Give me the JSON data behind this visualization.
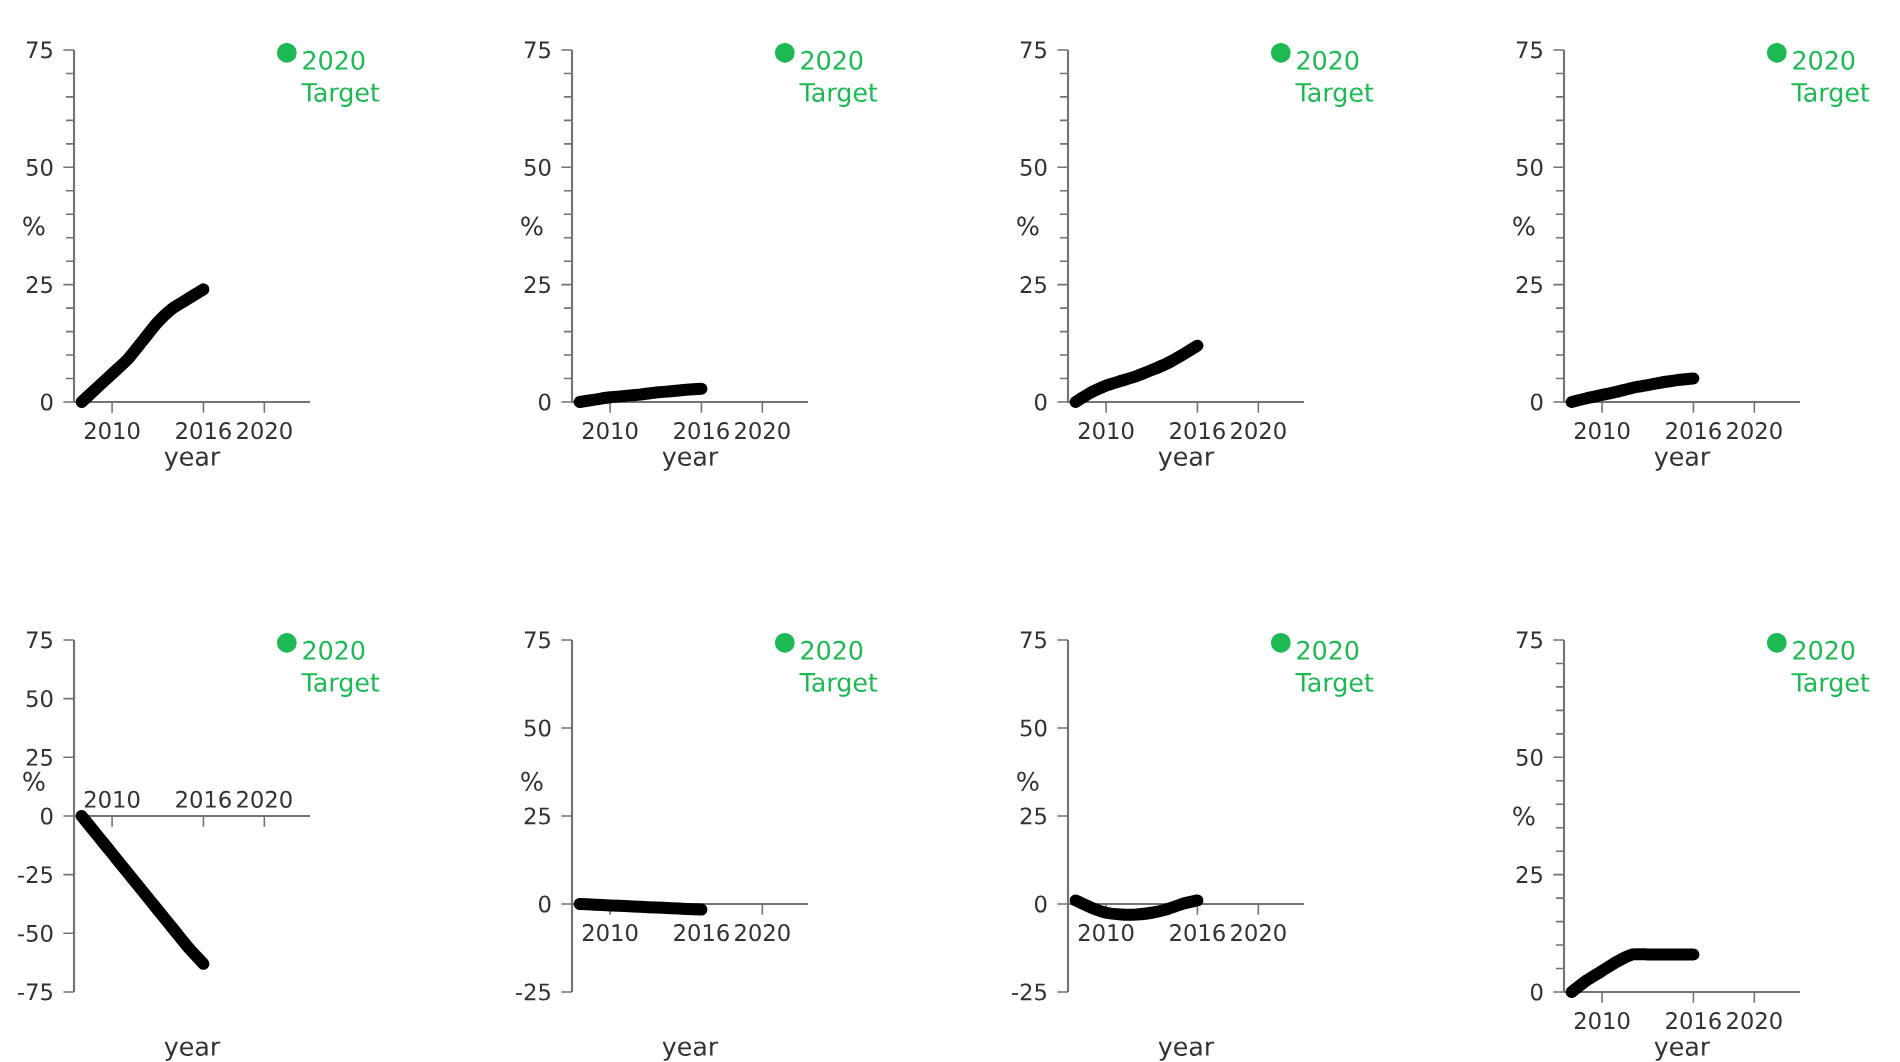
{
  "chart_data": [
    {
      "type": "line",
      "xlabel": "year",
      "ylabel": "%",
      "x": [
        2008,
        2009,
        2010,
        2011,
        2012,
        2013,
        2014,
        2015,
        2016
      ],
      "xlim": [
        2007.5,
        2023
      ],
      "xticks": [
        2010,
        2016,
        2020
      ],
      "ylim": [
        0,
        75
      ],
      "yticks": [
        0,
        25,
        50,
        75
      ],
      "legend": "top right",
      "line_style": "solid",
      "series": [
        {
          "color": "#000000",
          "values": [
            0,
            3,
            6,
            9,
            13,
            17,
            20,
            22,
            24
          ]
        },
        {
          "name": "2020 Target",
          "type": "scatter",
          "color": "#1db954",
          "values": [
            null,
            null,
            null,
            null,
            null,
            null,
            null,
            null,
            null
          ]
        }
      ]
    },
    {
      "type": "line",
      "xlabel": "year",
      "ylabel": "%",
      "x": [
        2008,
        2009,
        2010,
        2011,
        2012,
        2013,
        2014,
        2015,
        2016
      ],
      "xlim": [
        2007.5,
        2023
      ],
      "xticks": [
        2010,
        2016,
        2020
      ],
      "ylim": [
        0,
        75
      ],
      "yticks": [
        0,
        25,
        50,
        75
      ],
      "legend": "top right",
      "line_style": "solid",
      "series": [
        {
          "color": "#000000",
          "values": [
            0,
            0.5,
            1,
            1.3,
            1.6,
            2,
            2.3,
            2.6,
            2.8
          ]
        },
        {
          "name": "2020 Target",
          "type": "scatter",
          "color": "#1db954",
          "values": [
            null,
            null,
            null,
            null,
            null,
            null,
            null,
            null,
            null
          ]
        }
      ]
    },
    {
      "type": "line",
      "xlabel": "year",
      "ylabel": "%",
      "x": [
        2008,
        2009,
        2010,
        2011,
        2012,
        2013,
        2014,
        2015,
        2016
      ],
      "xlim": [
        2007.5,
        2023
      ],
      "xticks": [
        2010,
        2016,
        2020
      ],
      "ylim": [
        0,
        75
      ],
      "yticks": [
        0,
        25,
        50,
        75
      ],
      "legend": "top right",
      "line_style": "solid",
      "series": [
        {
          "color": "#000000",
          "values": [
            0,
            2,
            3.5,
            4.5,
            5.5,
            6.8,
            8.2,
            10,
            12
          ]
        },
        {
          "name": "2020 Target",
          "type": "scatter",
          "color": "#1db954",
          "values": [
            null,
            null,
            null,
            null,
            null,
            null,
            null,
            null,
            null
          ]
        }
      ]
    },
    {
      "type": "line",
      "xlabel": "year",
      "ylabel": "%",
      "x": [
        2008,
        2009,
        2010,
        2011,
        2012,
        2013,
        2014,
        2015,
        2016
      ],
      "xlim": [
        2007.5,
        2023
      ],
      "xticks": [
        2010,
        2016,
        2020
      ],
      "ylim": [
        0,
        75
      ],
      "yticks": [
        0,
        25,
        50,
        75
      ],
      "legend": "top right",
      "line_style": "solid",
      "series": [
        {
          "color": "#000000",
          "values": [
            0,
            0.8,
            1.5,
            2.2,
            3,
            3.6,
            4.2,
            4.7,
            5
          ]
        },
        {
          "name": "2020 Target",
          "type": "scatter",
          "color": "#1db954",
          "values": [
            null,
            null,
            null,
            null,
            null,
            null,
            null,
            null,
            null
          ]
        }
      ]
    },
    {
      "type": "line",
      "xlabel": "year",
      "ylabel": "%",
      "x": [
        2008,
        2009,
        2010,
        2011,
        2012,
        2013,
        2014,
        2015,
        2016
      ],
      "xlim": [
        2007.5,
        2023
      ],
      "xticks": [
        2010,
        2016,
        2020
      ],
      "ylim": [
        -75,
        75
      ],
      "yticks": [
        -75,
        -50,
        -25,
        0,
        25,
        50,
        75
      ],
      "legend": "top right",
      "line_style": "solid",
      "series": [
        {
          "color": "#000000",
          "values": [
            0,
            -8,
            -16,
            -24,
            -32,
            -40,
            -48,
            -56,
            -63
          ]
        },
        {
          "name": "2020 Target",
          "type": "scatter",
          "color": "#1db954",
          "values": [
            null,
            null,
            null,
            null,
            null,
            null,
            null,
            null,
            null
          ]
        }
      ]
    },
    {
      "type": "line",
      "xlabel": "year",
      "ylabel": "%",
      "x": [
        2008,
        2009,
        2010,
        2011,
        2012,
        2013,
        2014,
        2015,
        2016
      ],
      "xlim": [
        2007.5,
        2023
      ],
      "xticks": [
        2010,
        2016,
        2020
      ],
      "ylim": [
        -25,
        75
      ],
      "yticks": [
        -25,
        0,
        25,
        50,
        75
      ],
      "legend": "top right",
      "line_style": "solid",
      "series": [
        {
          "color": "#000000",
          "values": [
            0,
            -0.2,
            -0.4,
            -0.6,
            -0.8,
            -1,
            -1.2,
            -1.4,
            -1.6
          ]
        },
        {
          "name": "2020 Target",
          "type": "scatter",
          "color": "#1db954",
          "values": [
            null,
            null,
            null,
            null,
            null,
            null,
            null,
            null,
            null
          ]
        }
      ]
    },
    {
      "type": "line",
      "xlabel": "year",
      "ylabel": "%",
      "x": [
        2008,
        2009,
        2010,
        2011,
        2012,
        2013,
        2014,
        2015,
        2016
      ],
      "xlim": [
        2007.5,
        2023
      ],
      "xticks": [
        2010,
        2016,
        2020
      ],
      "ylim": [
        -25,
        75
      ],
      "yticks": [
        -25,
        0,
        25,
        50,
        75
      ],
      "legend": "top right",
      "line_style": "solid",
      "series": [
        {
          "color": "#000000",
          "values": [
            1,
            -1,
            -2.5,
            -3,
            -3,
            -2.5,
            -1.5,
            0,
            1
          ]
        },
        {
          "name": "2020 Target",
          "type": "scatter",
          "color": "#1db954",
          "values": [
            null,
            null,
            null,
            null,
            null,
            null,
            null,
            null,
            null
          ]
        }
      ]
    },
    {
      "type": "line",
      "xlabel": "year",
      "ylabel": "%",
      "x": [
        2008,
        2009,
        2010,
        2011,
        2012,
        2013,
        2014,
        2015,
        2016
      ],
      "xlim": [
        2007.5,
        2023
      ],
      "xticks": [
        2010,
        2016,
        2020
      ],
      "ylim": [
        0,
        75
      ],
      "yticks": [
        0,
        25,
        50,
        75
      ],
      "legend": "top right",
      "line_style": "solid",
      "series": [
        {
          "color": "#000000",
          "values": [
            0,
            2.5,
            4.5,
            6.5,
            8,
            8,
            8,
            8,
            8
          ]
        },
        {
          "name": "2020 Target",
          "type": "scatter",
          "color": "#1db954",
          "values": [
            null,
            null,
            null,
            null,
            null,
            null,
            null,
            null,
            null
          ]
        }
      ]
    }
  ]
}
